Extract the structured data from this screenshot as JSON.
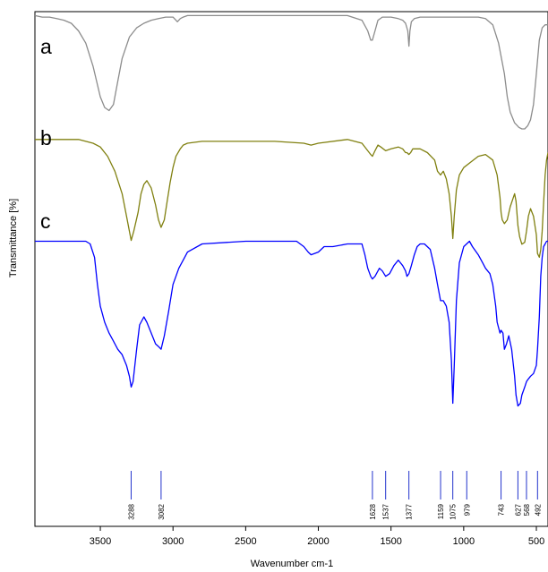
{
  "chart_data": {
    "type": "line",
    "title": "",
    "xlabel": "Wavenumber cm-1",
    "ylabel": "Transmittance [%]",
    "x_reversed": true,
    "xlim": [
      3950,
      420
    ],
    "grid": false,
    "x_ticks": [
      3500,
      3000,
      2500,
      2000,
      1500,
      1000,
      500
    ],
    "x_tick_labels": [
      "3500",
      "3000",
      "2500",
      "2000",
      "1500",
      "1000",
      "500"
    ],
    "series": [
      {
        "name": "a",
        "color": "#8c8c8c",
        "x": [
          3950,
          3900,
          3850,
          3800,
          3750,
          3700,
          3650,
          3600,
          3550,
          3500,
          3470,
          3440,
          3410,
          3380,
          3350,
          3300,
          3250,
          3200,
          3150,
          3100,
          3050,
          3000,
          2970,
          2950,
          2930,
          2900,
          2850,
          2800,
          2500,
          2300,
          2000,
          1800,
          1700,
          1660,
          1640,
          1628,
          1610,
          1590,
          1560,
          1500,
          1450,
          1420,
          1400,
          1385,
          1377,
          1370,
          1360,
          1340,
          1300,
          1200,
          1100,
          1000,
          900,
          850,
          800,
          760,
          720,
          700,
          680,
          650,
          620,
          600,
          580,
          560,
          540,
          520,
          500,
          480,
          460,
          440,
          420
        ],
        "y": [
          98,
          97,
          97,
          96,
          95,
          93,
          88,
          80,
          65,
          45,
          38,
          36,
          40,
          55,
          70,
          84,
          90,
          93,
          95,
          96,
          97,
          97,
          94,
          96,
          97,
          98,
          98,
          98,
          98,
          98,
          98,
          98,
          95,
          88,
          82,
          82,
          88,
          95,
          97,
          97,
          96,
          95,
          93,
          88,
          78,
          88,
          94,
          96,
          97,
          97,
          97,
          97,
          97,
          96,
          92,
          80,
          60,
          45,
          35,
          28,
          25,
          24,
          24,
          26,
          30,
          40,
          60,
          82,
          90,
          92,
          92
        ]
      },
      {
        "name": "b",
        "color": "#808010",
        "x": [
          3950,
          3900,
          3850,
          3800,
          3750,
          3700,
          3650,
          3600,
          3550,
          3500,
          3450,
          3400,
          3350,
          3320,
          3300,
          3288,
          3270,
          3240,
          3220,
          3200,
          3180,
          3150,
          3120,
          3100,
          3082,
          3060,
          3040,
          3020,
          3000,
          2980,
          2950,
          2930,
          2900,
          2800,
          2500,
          2300,
          2100,
          2050,
          2000,
          1800,
          1700,
          1660,
          1640,
          1628,
          1610,
          1590,
          1570,
          1537,
          1500,
          1450,
          1420,
          1400,
          1390,
          1377,
          1365,
          1350,
          1300,
          1250,
          1200,
          1180,
          1159,
          1140,
          1120,
          1100,
          1085,
          1075,
          1065,
          1050,
          1030,
          1000,
          950,
          900,
          850,
          800,
          770,
          750,
          743,
          735,
          720,
          700,
          680,
          650,
          640,
          627,
          615,
          600,
          580,
          568,
          555,
          540,
          520,
          500,
          492,
          480,
          470,
          460,
          450,
          440,
          430,
          420
        ],
        "y": [
          79,
          79,
          79,
          79,
          79,
          79,
          79,
          78,
          77,
          75,
          70,
          62,
          50,
          38,
          30,
          25,
          30,
          40,
          50,
          55,
          57,
          53,
          44,
          36,
          32,
          36,
          46,
          56,
          64,
          70,
          74,
          76,
          77,
          78,
          78,
          78,
          77,
          76,
          77,
          79,
          77,
          73,
          71,
          70,
          73,
          76,
          75,
          73,
          74,
          75,
          74,
          72,
          72,
          71,
          72,
          74,
          74,
          72,
          68,
          62,
          60,
          62,
          58,
          50,
          38,
          26,
          38,
          52,
          60,
          64,
          67,
          70,
          71,
          68,
          60,
          48,
          40,
          36,
          34,
          36,
          43,
          50,
          46,
          33,
          27,
          23,
          24,
          30,
          38,
          42,
          38,
          28,
          18,
          16,
          20,
          30,
          45,
          60,
          68,
          72
        ]
      },
      {
        "name": "c",
        "color": "#0000ff",
        "x": [
          3950,
          3900,
          3850,
          3800,
          3750,
          3700,
          3650,
          3600,
          3570,
          3540,
          3520,
          3500,
          3470,
          3440,
          3410,
          3380,
          3350,
          3320,
          3300,
          3288,
          3275,
          3250,
          3230,
          3200,
          3180,
          3150,
          3120,
          3100,
          3082,
          3060,
          3030,
          3000,
          2960,
          2920,
          2900,
          2800,
          2500,
          2300,
          2150,
          2100,
          2070,
          2050,
          2000,
          1960,
          1930,
          1900,
          1800,
          1700,
          1680,
          1660,
          1640,
          1628,
          1610,
          1580,
          1560,
          1537,
          1510,
          1480,
          1450,
          1420,
          1400,
          1390,
          1377,
          1360,
          1340,
          1320,
          1300,
          1270,
          1230,
          1200,
          1180,
          1159,
          1140,
          1120,
          1100,
          1085,
          1075,
          1065,
          1050,
          1030,
          1000,
          980,
          960,
          940,
          900,
          870,
          850,
          820,
          800,
          780,
          770,
          750,
          743,
          730,
          720,
          705,
          690,
          670,
          650,
          640,
          627,
          610,
          600,
          580,
          568,
          555,
          540,
          520,
          500,
          492,
          480,
          470,
          460,
          450,
          440,
          430,
          420
        ],
        "y": [
          68,
          68,
          68,
          68,
          68,
          68,
          68,
          68,
          67,
          62,
          52,
          44,
          38,
          34,
          31,
          28,
          26,
          22,
          18,
          14,
          16,
          28,
          37,
          40,
          38,
          34,
          30,
          29,
          28,
          33,
          42,
          52,
          58,
          62,
          64,
          67,
          68,
          68,
          68,
          66,
          64,
          63,
          64,
          66,
          66,
          66,
          67,
          67,
          63,
          58,
          55,
          54,
          55,
          58,
          57,
          55,
          56,
          59,
          61,
          59,
          57,
          55,
          56,
          59,
          63,
          66,
          67,
          67,
          65,
          58,
          52,
          46,
          46,
          44,
          38,
          24,
          8,
          22,
          46,
          60,
          66,
          67,
          68,
          66,
          63,
          60,
          58,
          56,
          52,
          44,
          38,
          34,
          35,
          34,
          28,
          30,
          33,
          28,
          18,
          11,
          7,
          8,
          11,
          14,
          16,
          17,
          18,
          19,
          22,
          28,
          40,
          55,
          62,
          66,
          67,
          68,
          68
        ]
      }
    ],
    "peak_markers": [
      3288,
      3082,
      1628,
      1537,
      1377,
      1159,
      1075,
      979,
      743,
      627,
      568,
      492
    ],
    "peak_labels": [
      "3288",
      "3082",
      "1628",
      "1537",
      "1377",
      "1159",
      "1075",
      "979",
      "743",
      "627",
      "568",
      "492"
    ],
    "marker_color": "#2233cc"
  }
}
